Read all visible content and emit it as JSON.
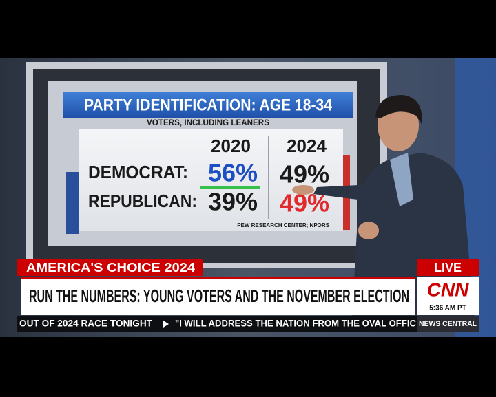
{
  "screen": {
    "title": "PARTY IDENTIFICATION: AGE 18-34",
    "subtitle": "VOTERS, INCLUDING LEANERS",
    "columns": [
      "2020",
      "2024"
    ],
    "rows": [
      {
        "label": "DEMOCRAT:",
        "values": [
          "56%",
          "49%"
        ]
      },
      {
        "label": "REPUBLICAN:",
        "values": [
          "39%",
          "49%"
        ]
      }
    ],
    "source": "PEW RESEARCH CENTER; NPORS"
  },
  "lower_third": {
    "tag": "AMERICA'S CHOICE 2024",
    "live": "LIVE",
    "headline": "RUN THE NUMBERS: YOUNG VOTERS AND THE NOVEMBER ELECTION",
    "logo": "CNN",
    "time": "5:36 AM PT"
  },
  "ticker": {
    "items": [
      "OUT OF 2024 RACE TONIGHT",
      "\"I WILL ADDRESS THE NATION FROM THE OVAL OFFIC"
    ],
    "network": "NEWS CENTRAL"
  }
}
